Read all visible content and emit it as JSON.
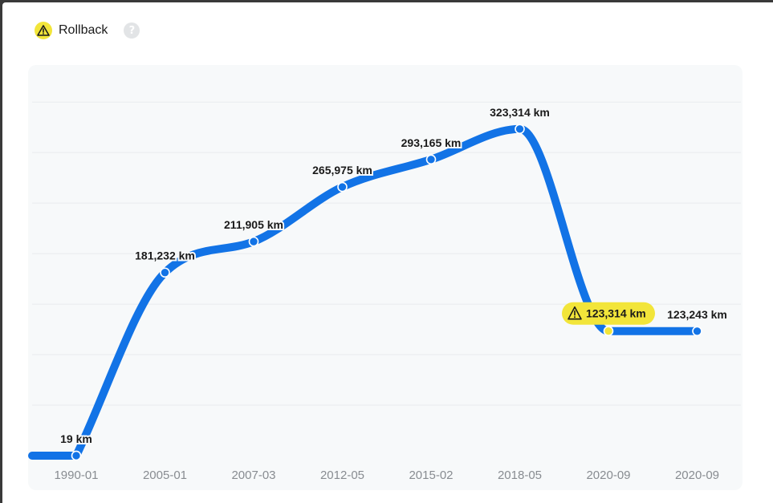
{
  "legend": {
    "label": "Rollback",
    "icon": "warning-icon",
    "help_icon": "help-icon",
    "help_glyph": "?"
  },
  "colors": {
    "line": "#1273e6",
    "warning": "#f2e53a",
    "grid": "#e9ecee",
    "panel": "#f7f9fa"
  },
  "chart_data": {
    "type": "line",
    "categories": [
      "1990-01",
      "2005-01",
      "2007-03",
      "2012-05",
      "2015-02",
      "2018-05",
      "2020-09",
      "2020-09"
    ],
    "values": [
      19,
      181232,
      211905,
      265975,
      293165,
      323314,
      123314,
      123243
    ],
    "data_labels": [
      "19 km",
      "181,232 km",
      "211,905 km",
      "265,975 km",
      "293,165 km",
      "323,314 km",
      "123,314 km",
      "123,243 km"
    ],
    "flagged_indices": [
      6
    ],
    "flag_label": "Rollback",
    "unit": "km",
    "title": "",
    "xlabel": "",
    "ylabel": "",
    "ylim": [
      0,
      370000
    ],
    "grid": true,
    "legend_position": "top-left"
  }
}
